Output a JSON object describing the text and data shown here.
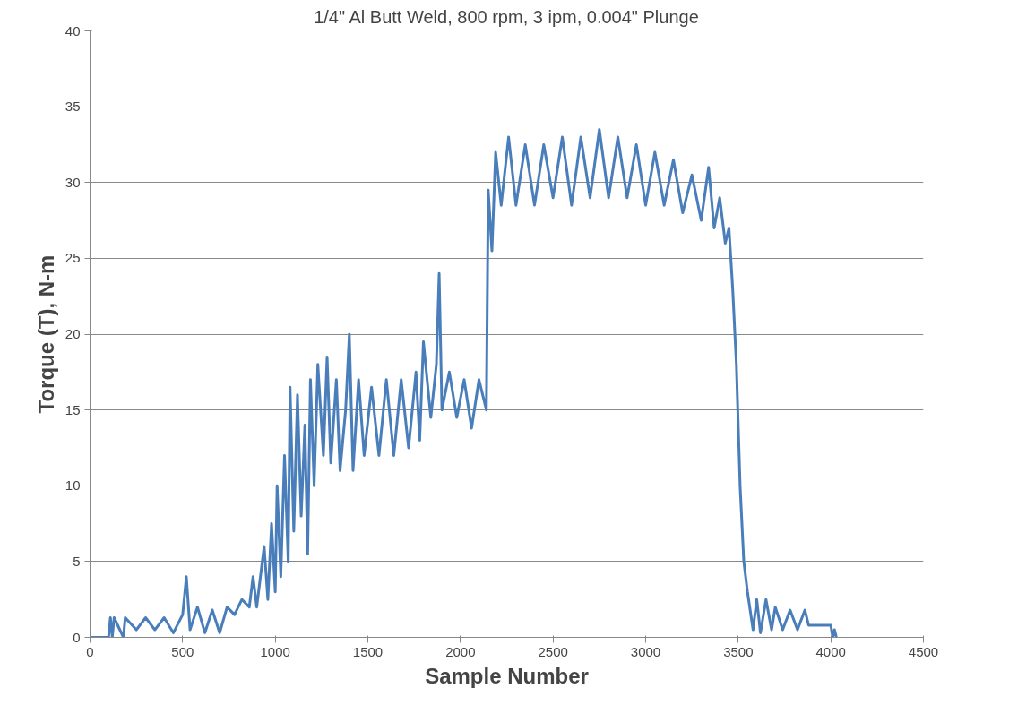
{
  "chart_data": {
    "type": "line",
    "title": "1/4\" Al Butt Weld, 800 rpm, 3 ipm, 0.004\" Plunge",
    "xlabel": "Sample Number",
    "ylabel": "Torque (T), N-m",
    "xlim": [
      0,
      4500
    ],
    "xticks": [
      0,
      500,
      1000,
      1500,
      2000,
      2500,
      3000,
      3500,
      4000,
      4500
    ],
    "ylim": [
      0,
      40
    ],
    "yticks": [
      0,
      5,
      10,
      15,
      20,
      25,
      30,
      35,
      40
    ],
    "grid": "y",
    "marker": "none",
    "line_style": "solid",
    "series": [
      {
        "color": "#4a7ebb",
        "x": [
          0,
          100,
          110,
          120,
          130,
          180,
          190,
          250,
          300,
          350,
          400,
          450,
          500,
          520,
          540,
          580,
          620,
          660,
          700,
          740,
          780,
          820,
          860,
          880,
          900,
          940,
          960,
          980,
          1000,
          1010,
          1030,
          1050,
          1070,
          1080,
          1100,
          1120,
          1140,
          1160,
          1175,
          1190,
          1210,
          1230,
          1260,
          1280,
          1300,
          1330,
          1350,
          1380,
          1400,
          1420,
          1450,
          1480,
          1520,
          1560,
          1600,
          1640,
          1680,
          1720,
          1760,
          1780,
          1800,
          1840,
          1870,
          1885,
          1900,
          1940,
          1980,
          2020,
          2060,
          2100,
          2140,
          2150,
          2170,
          2190,
          2220,
          2260,
          2300,
          2350,
          2400,
          2450,
          2500,
          2550,
          2600,
          2650,
          2700,
          2750,
          2800,
          2850,
          2900,
          2950,
          3000,
          3050,
          3100,
          3150,
          3200,
          3250,
          3300,
          3340,
          3370,
          3400,
          3430,
          3450,
          3470,
          3490,
          3510,
          3530,
          3550,
          3580,
          3600,
          3620,
          3650,
          3680,
          3700,
          3740,
          3780,
          3820,
          3860,
          3880,
          4000,
          4010,
          4020,
          4030
        ],
        "values": [
          0,
          0,
          1.3,
          0,
          1.3,
          0,
          1.3,
          0.5,
          1.3,
          0.5,
          1.3,
          0.3,
          1.5,
          4,
          0.5,
          2,
          0.3,
          1.8,
          0.3,
          2,
          1.5,
          2.5,
          2,
          4,
          2,
          6,
          2.5,
          7.5,
          3,
          10,
          4,
          12,
          5,
          16.5,
          7,
          16,
          8,
          14,
          5.5,
          17,
          10,
          18,
          12,
          18.5,
          11.5,
          17,
          11,
          15,
          20,
          11,
          17,
          12,
          16.5,
          12,
          17,
          12,
          17,
          12.5,
          17.5,
          13,
          19.5,
          14.5,
          18,
          24,
          15,
          17.5,
          14.5,
          17,
          13.8,
          17,
          15,
          29.5,
          25.5,
          32,
          28.5,
          33,
          28.5,
          32.5,
          28.5,
          32.5,
          29,
          33,
          28.5,
          33,
          29,
          33.5,
          29,
          33,
          29,
          32.5,
          28.5,
          32,
          28.5,
          31.5,
          28,
          30.5,
          27.5,
          31,
          27,
          29,
          26,
          27,
          23,
          18,
          10,
          5,
          3,
          0.5,
          2.5,
          0.3,
          2.5,
          0.5,
          2,
          0.5,
          1.8,
          0.5,
          1.8,
          0.8,
          0.8,
          0,
          0.5,
          0
        ]
      }
    ]
  }
}
